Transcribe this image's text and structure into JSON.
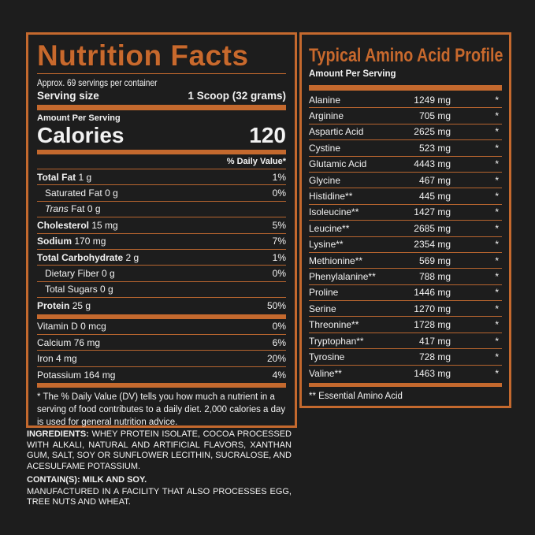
{
  "nutrition": {
    "title": "Nutrition Facts",
    "servings": "Approx. 69 servings per container",
    "serving_size_label": "Serving size",
    "serving_size_value": "1 Scoop (32 grams)",
    "amount_per_serving": "Amount Per Serving",
    "calories_label": "Calories",
    "calories_value": "120",
    "dv_header": "% Daily Value*",
    "rows": [
      {
        "label": "Total Fat",
        "amount": "1 g",
        "dv": "1%"
      },
      {
        "label": "Saturated Fat",
        "amount": "0 g",
        "dv": "0%"
      },
      {
        "label": "Trans",
        "label2": "Fat",
        "amount": "0 g",
        "dv": ""
      },
      {
        "label": "Cholesterol",
        "amount": "15 mg",
        "dv": "5%"
      },
      {
        "label": "Sodium",
        "amount": "170 mg",
        "dv": "7%"
      },
      {
        "label": "Total Carbohydrate",
        "amount": "2 g",
        "dv": "1%"
      },
      {
        "label": "Dietary Fiber",
        "amount": "0 g",
        "dv": "0%"
      },
      {
        "label": "Total Sugars",
        "amount": "0 g",
        "dv": ""
      },
      {
        "label": "Protein",
        "amount": "25 g",
        "dv": "50%"
      }
    ],
    "vitamins": [
      {
        "label": "Vitamin D",
        "amount": "0 mcg",
        "dv": "0%"
      },
      {
        "label": "Calcium",
        "amount": "76 mg",
        "dv": "6%"
      },
      {
        "label": "Iron",
        "amount": "4 mg",
        "dv": "20%"
      },
      {
        "label": "Potassium",
        "amount": "164 mg",
        "dv": "4%"
      }
    ],
    "footnote": "* The % Daily Value (DV) tells you how much a nutrient in a serving of food contributes to a daily diet. 2,000 calories a day is used for general nutrition advice."
  },
  "ingredients": {
    "label": "INGREDIENTS:",
    "text": "WHEY PROTEIN ISOLATE, COCOA PROCESSED WITH ALKALI, NATURAL AND ARTIFICIAL FLAVORS, XANTHAN GUM, SALT, SOY OR SUNFLOWER LECITHIN, SUCRALOSE, AND ACESULFAME POTASSIUM.",
    "contains": "CONTAIN(S): MILK AND SOY.",
    "facility": "MANUFACTURED IN A FACILITY THAT ALSO PROCESSES EGG, TREE NUTS AND WHEAT."
  },
  "amino": {
    "title": "Typical Amino Acid Profile",
    "subtitle": "Amount Per Serving",
    "rows": [
      {
        "name": "Alanine",
        "amount": "1249 mg",
        "mark": "*"
      },
      {
        "name": "Arginine",
        "amount": "705 mg",
        "mark": "*"
      },
      {
        "name": "Aspartic Acid",
        "amount": "2625 mg",
        "mark": "*"
      },
      {
        "name": "Cystine",
        "amount": "523 mg",
        "mark": "*"
      },
      {
        "name": "Glutamic Acid",
        "amount": "4443 mg",
        "mark": "*"
      },
      {
        "name": "Glycine",
        "amount": "467 mg",
        "mark": "*"
      },
      {
        "name": "Histidine**",
        "amount": "445 mg",
        "mark": "*"
      },
      {
        "name": "Isoleucine**",
        "amount": "1427 mg",
        "mark": "*"
      },
      {
        "name": "Leucine**",
        "amount": "2685 mg",
        "mark": "*"
      },
      {
        "name": "Lysine**",
        "amount": "2354 mg",
        "mark": "*"
      },
      {
        "name": "Methionine**",
        "amount": "569 mg",
        "mark": "*"
      },
      {
        "name": "Phenylalanine**",
        "amount": "788 mg",
        "mark": "*"
      },
      {
        "name": "Proline",
        "amount": "1446 mg",
        "mark": "*"
      },
      {
        "name": "Serine",
        "amount": "1270 mg",
        "mark": "*"
      },
      {
        "name": "Threonine**",
        "amount": "1728 mg",
        "mark": "*"
      },
      {
        "name": "Tryptophan**",
        "amount": "417 mg",
        "mark": "*"
      },
      {
        "name": "Tyrosine",
        "amount": "728 mg",
        "mark": "*"
      },
      {
        "name": "Valine**",
        "amount": "1463 mg",
        "mark": "*"
      }
    ],
    "footnote": "** Essential Amino Acid"
  },
  "colors": {
    "accent": "#c4692e",
    "background": "#1d1d1d",
    "text": "#f2f2f2"
  }
}
